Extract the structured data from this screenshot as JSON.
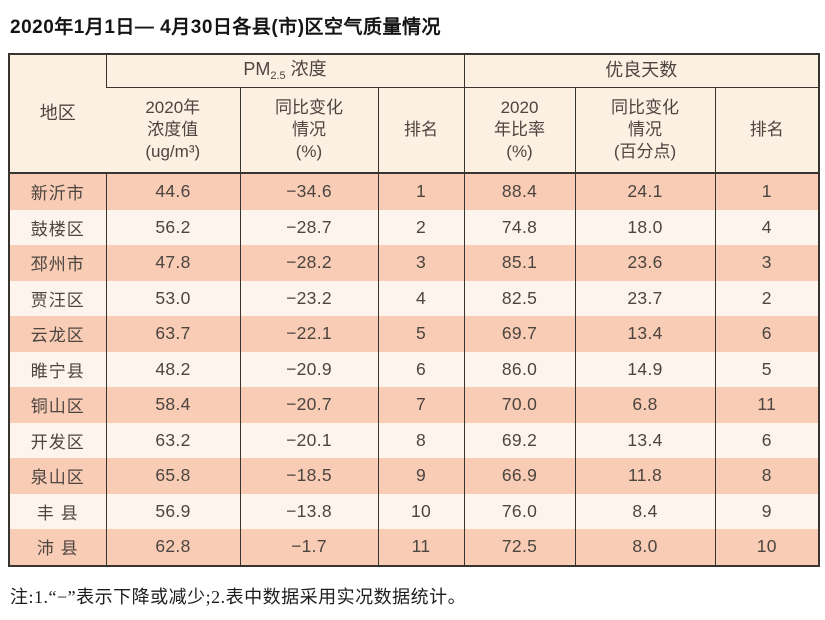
{
  "page": {
    "title": "2020年1月1日— 4月30日各县(市)区空气质量情况",
    "note": "注:1.“−”表示下降或减少;2.表中数据采用实况数据统计。"
  },
  "table": {
    "header": {
      "region": "地区",
      "pm_group": {
        "prefix": "PM",
        "sub": "2.5",
        "suffix": "浓度"
      },
      "good_group": "优良天数",
      "pm_value": "2020年\n浓度值\n(ug/m³)",
      "pm_change": "同比变化\n情况\n(%)",
      "pm_rank": "排名",
      "good_rate": "2020\n年比率\n(%)",
      "good_change": "同比变化\n情况\n(百分点)",
      "good_rank": "排名"
    },
    "rows": [
      {
        "region": "新沂市",
        "pm_value": "44.6",
        "pm_change": "−34.6",
        "pm_rank": "1",
        "good_rate": "88.4",
        "good_change": "24.1",
        "good_rank": "1"
      },
      {
        "region": "鼓楼区",
        "pm_value": "56.2",
        "pm_change": "−28.7",
        "pm_rank": "2",
        "good_rate": "74.8",
        "good_change": "18.0",
        "good_rank": "4"
      },
      {
        "region": "邳州市",
        "pm_value": "47.8",
        "pm_change": "−28.2",
        "pm_rank": "3",
        "good_rate": "85.1",
        "good_change": "23.6",
        "good_rank": "3"
      },
      {
        "region": "贾汪区",
        "pm_value": "53.0",
        "pm_change": "−23.2",
        "pm_rank": "4",
        "good_rate": "82.5",
        "good_change": "23.7",
        "good_rank": "2"
      },
      {
        "region": "云龙区",
        "pm_value": "63.7",
        "pm_change": "−22.1",
        "pm_rank": "5",
        "good_rate": "69.7",
        "good_change": "13.4",
        "good_rank": "6"
      },
      {
        "region": "睢宁县",
        "pm_value": "48.2",
        "pm_change": "−20.9",
        "pm_rank": "6",
        "good_rate": "86.0",
        "good_change": "14.9",
        "good_rank": "5"
      },
      {
        "region": "铜山区",
        "pm_value": "58.4",
        "pm_change": "−20.7",
        "pm_rank": "7",
        "good_rate": "70.0",
        "good_change": "6.8",
        "good_rank": "11"
      },
      {
        "region": "开发区",
        "pm_value": "63.2",
        "pm_change": "−20.1",
        "pm_rank": "8",
        "good_rate": "69.2",
        "good_change": "13.4",
        "good_rank": "6"
      },
      {
        "region": "泉山区",
        "pm_value": "65.8",
        "pm_change": "−18.5",
        "pm_rank": "9",
        "good_rate": "66.9",
        "good_change": "11.8",
        "good_rank": "8"
      },
      {
        "region": "丰 县",
        "pm_value": "56.9",
        "pm_change": "−13.8",
        "pm_rank": "10",
        "good_rate": "76.0",
        "good_change": "8.4",
        "good_rank": "9"
      },
      {
        "region": "沛 县",
        "pm_value": "62.8",
        "pm_change": "−1.7",
        "pm_rank": "11",
        "good_rate": "72.5",
        "good_change": "8.0",
        "good_rank": "10"
      }
    ],
    "colors": {
      "row_odd": "#f8ccb5",
      "row_even": "#fdf4ee",
      "header_bg": "#fcf0e3",
      "border": "#383430",
      "text": "#4c4540"
    }
  }
}
